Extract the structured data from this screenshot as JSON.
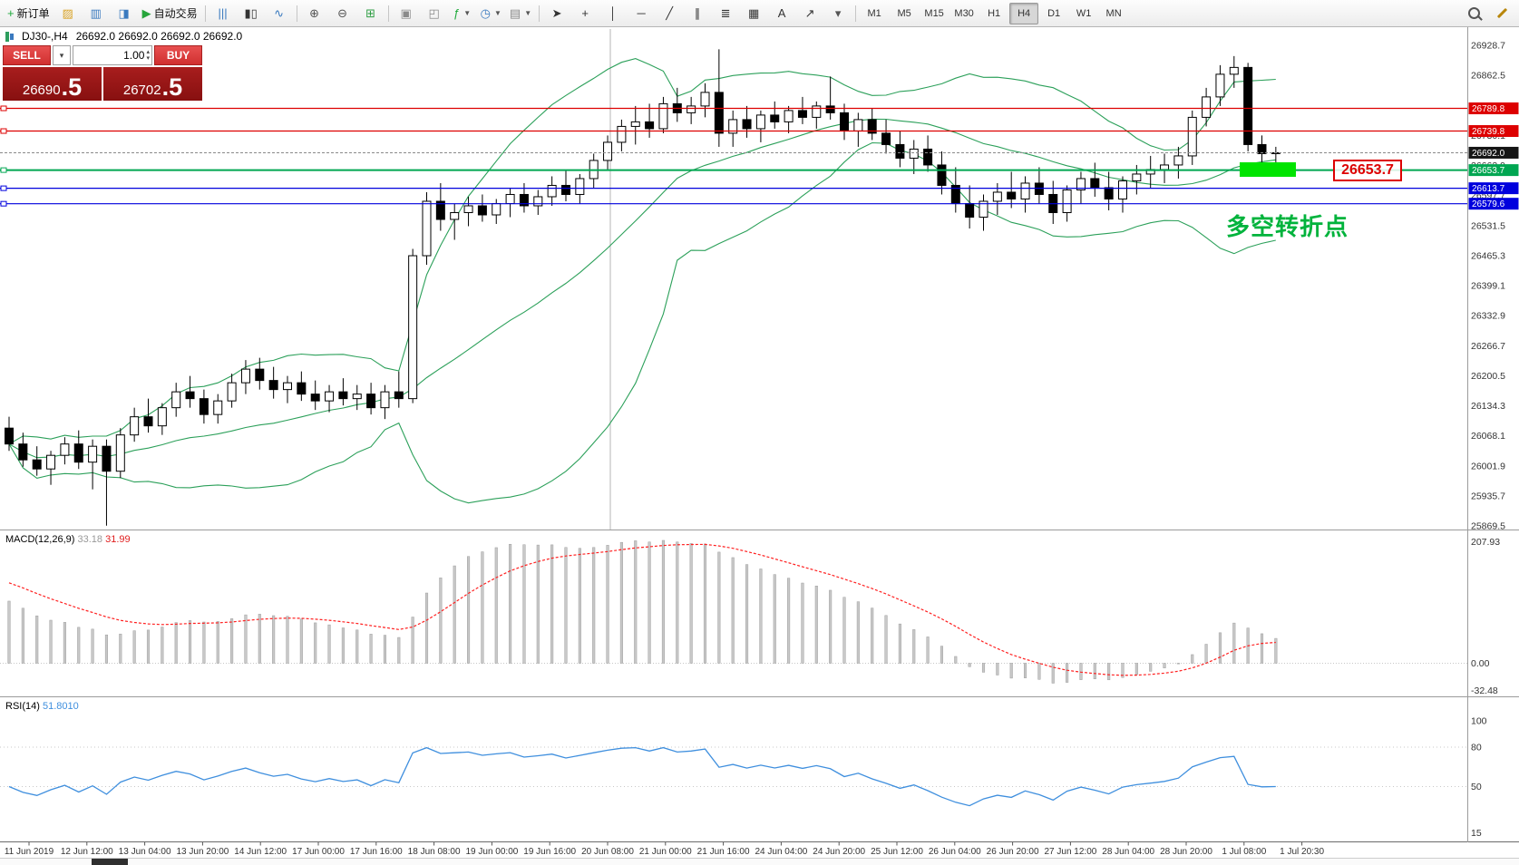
{
  "toolbar": {
    "groups": [
      {
        "items": [
          {
            "name": "new-order-button",
            "glyph": "+",
            "color": "#1faa3c",
            "label": "新订单"
          },
          {
            "name": "charts-profile-button",
            "glyph": "▨",
            "color": "#d9a326"
          },
          {
            "name": "market-watch-button",
            "glyph": "▥",
            "color": "#3a7abf"
          },
          {
            "name": "data-window-button",
            "glyph": "◨",
            "color": "#3a7abf"
          },
          {
            "name": "auto-trading-button",
            "glyph": "▶",
            "color": "#27a53b",
            "label": "自动交易"
          },
          {
            "sep": true
          },
          {
            "name": "bar-chart-button",
            "glyph": "|||",
            "color": "#3a7abf"
          },
          {
            "name": "candlestick-chart-button",
            "glyph": "▮▯",
            "color": "#333333"
          },
          {
            "name": "line-chart-button",
            "glyph": "∿",
            "color": "#3a7abf"
          },
          {
            "sep": true
          },
          {
            "name": "zoom-in-button",
            "glyph": "⊕",
            "color": "#555555"
          },
          {
            "name": "zoom-out-button",
            "glyph": "⊖",
            "color": "#555555"
          },
          {
            "name": "tile-windows-button",
            "glyph": "⊞",
            "color": "#2f9e44"
          },
          {
            "sep": true
          },
          {
            "name": "arrange-windows-button",
            "glyph": "▣",
            "color": "#8a8a8a"
          },
          {
            "name": "cascade-windows-button",
            "glyph": "◰",
            "color": "#8a8a8a"
          },
          {
            "name": "indicators-button",
            "glyph": "ƒ",
            "color": "#1faa3c",
            "dropdown": true
          },
          {
            "name": "periods-button",
            "glyph": "◷",
            "color": "#3a7abf",
            "dropdown": true
          },
          {
            "name": "templates-button",
            "glyph": "▤",
            "color": "#8a8a8a",
            "dropdown": true
          },
          {
            "sep": true
          },
          {
            "name": "cursor-button",
            "glyph": "➤",
            "color": "#333333"
          },
          {
            "name": "crosshair-button",
            "glyph": "+",
            "color": "#333333"
          },
          {
            "name": "vertical-line-button",
            "glyph": "│",
            "color": "#333333"
          },
          {
            "name": "horizontal-line-button",
            "glyph": "─",
            "color": "#333333"
          },
          {
            "name": "trendline-button",
            "glyph": "╱",
            "color": "#333333"
          },
          {
            "name": "channel-button",
            "glyph": "∥",
            "color": "#333333"
          },
          {
            "name": "fibonacci-button",
            "glyph": "≣",
            "color": "#333333"
          },
          {
            "name": "shapes-button",
            "glyph": "▦",
            "color": "#333333"
          },
          {
            "name": "text-button",
            "glyph": "A",
            "color": "#333333"
          },
          {
            "name": "arrows-button",
            "glyph": "↗",
            "color": "#333333"
          },
          {
            "name": "objects-list-button",
            "glyph": "▾",
            "color": "#555555"
          },
          {
            "sep": true
          }
        ]
      },
      {
        "timeframes": true
      },
      {
        "items": [
          {
            "spacer": true
          },
          {
            "name": "search-button",
            "css": "mag",
            "icon": "magnifier-icon"
          },
          {
            "name": "new-window-button",
            "css": "pencil",
            "icon": "pencil-icon"
          }
        ]
      }
    ],
    "timeframes": {
      "labels": [
        "M1",
        "M5",
        "M15",
        "M30",
        "H1",
        "H4",
        "D1",
        "W1",
        "MN"
      ],
      "active": "H4"
    }
  },
  "icons": {
    "dropdown_arrow": "▾",
    "spin_up": "▴",
    "spin_down": "▾"
  },
  "trade_panel": {
    "sell_label": "SELL",
    "buy_label": "BUY",
    "volume": "1.00",
    "sell_price_main": "26690",
    "sell_price_frac": ".5",
    "buy_price_main": "26702",
    "buy_price_frac": ".5"
  },
  "chart": {
    "title": "DJ30-,H4",
    "ohlc_text": "26692.0 26692.0 26692.0 26692.0",
    "levels": [
      {
        "value": 26789.8,
        "text": "26789.8",
        "color": "#dd0000"
      },
      {
        "value": 26739.8,
        "text": "26739.8",
        "color": "#dd0000"
      },
      {
        "value": 26653.7,
        "text": "26653.7",
        "color": "#00a651"
      },
      {
        "value": 26613.7,
        "text": "26613.7",
        "color": "#0000dd"
      },
      {
        "value": 26579.6,
        "text": "26579.6",
        "color": "#0000dd"
      }
    ],
    "current_price": {
      "value": 26692.0,
      "text": "26692.0",
      "color": "#151515"
    },
    "price_axis": [
      26928.7,
      26862.5,
      26796.3,
      26730.1,
      26663.9,
      26597.7,
      26531.5,
      26465.3,
      26399.1,
      26332.9,
      26266.7,
      26200.5,
      26134.3,
      26068.1,
      26001.9,
      25935.7,
      25869.5
    ],
    "time_axis": [
      "11 Jun 2019",
      "12 Jun 12:00",
      "13 Jun 04:00",
      "13 Jun 20:00",
      "14 Jun 12:00",
      "17 Jun 00:00",
      "17 Jun 16:00",
      "18 Jun 08:00",
      "19 Jun 00:00",
      "19 Jun 16:00",
      "20 Jun 08:00",
      "21 Jun 00:00",
      "21 Jun 16:00",
      "24 Jun 04:00",
      "24 Jun 20:00",
      "25 Jun 12:00",
      "26 Jun 04:00",
      "26 Jun 20:00",
      "27 Jun 12:00",
      "28 Jun 04:00",
      "28 Jun 20:00",
      "1 Jul 08:00",
      "1 Jul 20:30"
    ],
    "annotations": {
      "highlight_rect_color": "#00e400",
      "callout_text": "26653.7",
      "turning_point_text": "多空转折点",
      "turning_point_color": "#00b33c"
    }
  },
  "macd": {
    "label": "MACD(12,26,9)",
    "value_main": "33.18",
    "value_signal": "31.99",
    "axis_top": "207.93",
    "axis_zero": "0.00",
    "axis_bottom": "-32.48"
  },
  "rsi": {
    "label": "RSI(14)",
    "value": "51.8010",
    "axis": [
      100,
      80,
      50,
      15
    ]
  },
  "chart_data": [
    {
      "type": "candlestick",
      "name": "DJ30- H4 price",
      "timeframe": "H4",
      "symbol": "DJ30-",
      "overlays": [
        {
          "type": "bollinger_bands",
          "period": 20,
          "deviation": 2,
          "color": "#2ca05a"
        }
      ],
      "candles": [
        [
          26085,
          26110,
          26035,
          26050
        ],
        [
          26050,
          26075,
          26000,
          26015
        ],
        [
          26015,
          26045,
          25980,
          25995
        ],
        [
          25995,
          26035,
          25960,
          26025
        ],
        [
          26025,
          26065,
          26005,
          26050
        ],
        [
          26050,
          26080,
          25995,
          26010
        ],
        [
          26010,
          26060,
          25950,
          26045
        ],
        [
          26045,
          26060,
          25870,
          25990
        ],
        [
          25990,
          26085,
          25975,
          26070
        ],
        [
          26070,
          26130,
          26055,
          26110
        ],
        [
          26110,
          26150,
          26075,
          26090
        ],
        [
          26090,
          26140,
          26070,
          26130
        ],
        [
          26130,
          26185,
          26110,
          26165
        ],
        [
          26165,
          26200,
          26130,
          26150
        ],
        [
          26150,
          26170,
          26095,
          26115
        ],
        [
          26115,
          26160,
          26095,
          26145
        ],
        [
          26145,
          26205,
          26130,
          26185
        ],
        [
          26185,
          26235,
          26160,
          26215
        ],
        [
          26215,
          26240,
          26170,
          26190
        ],
        [
          26190,
          26220,
          26150,
          26170
        ],
        [
          26170,
          26200,
          26140,
          26185
        ],
        [
          26185,
          26210,
          26145,
          26160
        ],
        [
          26160,
          26190,
          26125,
          26145
        ],
        [
          26145,
          26180,
          26120,
          26165
        ],
        [
          26165,
          26195,
          26135,
          26150
        ],
        [
          26150,
          26180,
          26125,
          26160
        ],
        [
          26160,
          26185,
          26115,
          26130
        ],
        [
          26130,
          26180,
          26105,
          26165
        ],
        [
          26165,
          26210,
          26130,
          26150
        ],
        [
          26150,
          26480,
          26140,
          26465
        ],
        [
          26465,
          26605,
          26445,
          26585
        ],
        [
          26585,
          26625,
          26520,
          26545
        ],
        [
          26545,
          26580,
          26500,
          26560
        ],
        [
          26560,
          26595,
          26530,
          26575
        ],
        [
          26575,
          26600,
          26540,
          26555
        ],
        [
          26555,
          26590,
          26535,
          26580
        ],
        [
          26580,
          26615,
          26550,
          26600
        ],
        [
          26600,
          26625,
          26560,
          26575
        ],
        [
          26575,
          26610,
          26555,
          26595
        ],
        [
          26595,
          26640,
          26575,
          26620
        ],
        [
          26620,
          26655,
          26585,
          26600
        ],
        [
          26600,
          26645,
          26580,
          26635
        ],
        [
          26635,
          26690,
          26615,
          26675
        ],
        [
          26675,
          26730,
          26655,
          26715
        ],
        [
          26715,
          26765,
          26695,
          26750
        ],
        [
          26750,
          26795,
          26710,
          26760
        ],
        [
          26760,
          26800,
          26725,
          26745
        ],
        [
          26745,
          26815,
          26735,
          26800
        ],
        [
          26800,
          26835,
          26760,
          26780
        ],
        [
          26780,
          26815,
          26755,
          26795
        ],
        [
          26795,
          26845,
          26770,
          26825
        ],
        [
          26825,
          26920,
          26705,
          26735
        ],
        [
          26735,
          26785,
          26705,
          26765
        ],
        [
          26765,
          26795,
          26725,
          26745
        ],
        [
          26745,
          26785,
          26715,
          26775
        ],
        [
          26775,
          26805,
          26745,
          26760
        ],
        [
          26760,
          26795,
          26735,
          26785
        ],
        [
          26785,
          26815,
          26755,
          26770
        ],
        [
          26770,
          26805,
          26745,
          26795
        ],
        [
          26795,
          26860,
          26765,
          26780
        ],
        [
          26780,
          26800,
          26720,
          26740
        ],
        [
          26740,
          26780,
          26705,
          26765
        ],
        [
          26765,
          26790,
          26720,
          26735
        ],
        [
          26735,
          26765,
          26690,
          26710
        ],
        [
          26710,
          26740,
          26660,
          26680
        ],
        [
          26680,
          26720,
          26645,
          26700
        ],
        [
          26700,
          26730,
          26650,
          26665
        ],
        [
          26665,
          26695,
          26600,
          26620
        ],
        [
          26620,
          26660,
          26560,
          26580
        ],
        [
          26580,
          26620,
          26525,
          26550
        ],
        [
          26550,
          26600,
          26520,
          26585
        ],
        [
          26585,
          26625,
          26555,
          26605
        ],
        [
          26605,
          26650,
          26570,
          26590
        ],
        [
          26590,
          26640,
          26560,
          26625
        ],
        [
          26625,
          26660,
          26580,
          26600
        ],
        [
          26600,
          26630,
          26535,
          26560
        ],
        [
          26560,
          26620,
          26540,
          26610
        ],
        [
          26610,
          26650,
          26580,
          26635
        ],
        [
          26635,
          26670,
          26595,
          26615
        ],
        [
          26615,
          26650,
          26565,
          26590
        ],
        [
          26590,
          26640,
          26560,
          26630
        ],
        [
          26630,
          26665,
          26600,
          26645
        ],
        [
          26645,
          26685,
          26615,
          26655
        ],
        [
          26655,
          26690,
          26625,
          26665
        ],
        [
          26665,
          26705,
          26635,
          26685
        ],
        [
          26685,
          26785,
          26665,
          26770
        ],
        [
          26770,
          26835,
          26750,
          26815
        ],
        [
          26815,
          26885,
          26795,
          26865
        ],
        [
          26865,
          26905,
          26835,
          26880
        ],
        [
          26880,
          26890,
          26695,
          26710
        ],
        [
          26710,
          26730,
          26670,
          26690
        ],
        [
          26690,
          26705,
          26655,
          26692
        ]
      ]
    },
    {
      "type": "bar",
      "name": "MACD(12,26,9) histogram + signal",
      "derived_from": "candles",
      "displayed_values": {
        "macd": 33.18,
        "signal": 31.99
      },
      "axis_labels": [
        207.93,
        0.0,
        -32.48
      ],
      "colors": {
        "histogram": "#c8c8c8",
        "signal": "#ff2020"
      }
    },
    {
      "type": "line",
      "name": "RSI(14)",
      "derived_from": "candles",
      "displayed_value": 51.801,
      "axis_labels": [
        100,
        80,
        50,
        15
      ],
      "color": "#3f8fde"
    }
  ]
}
